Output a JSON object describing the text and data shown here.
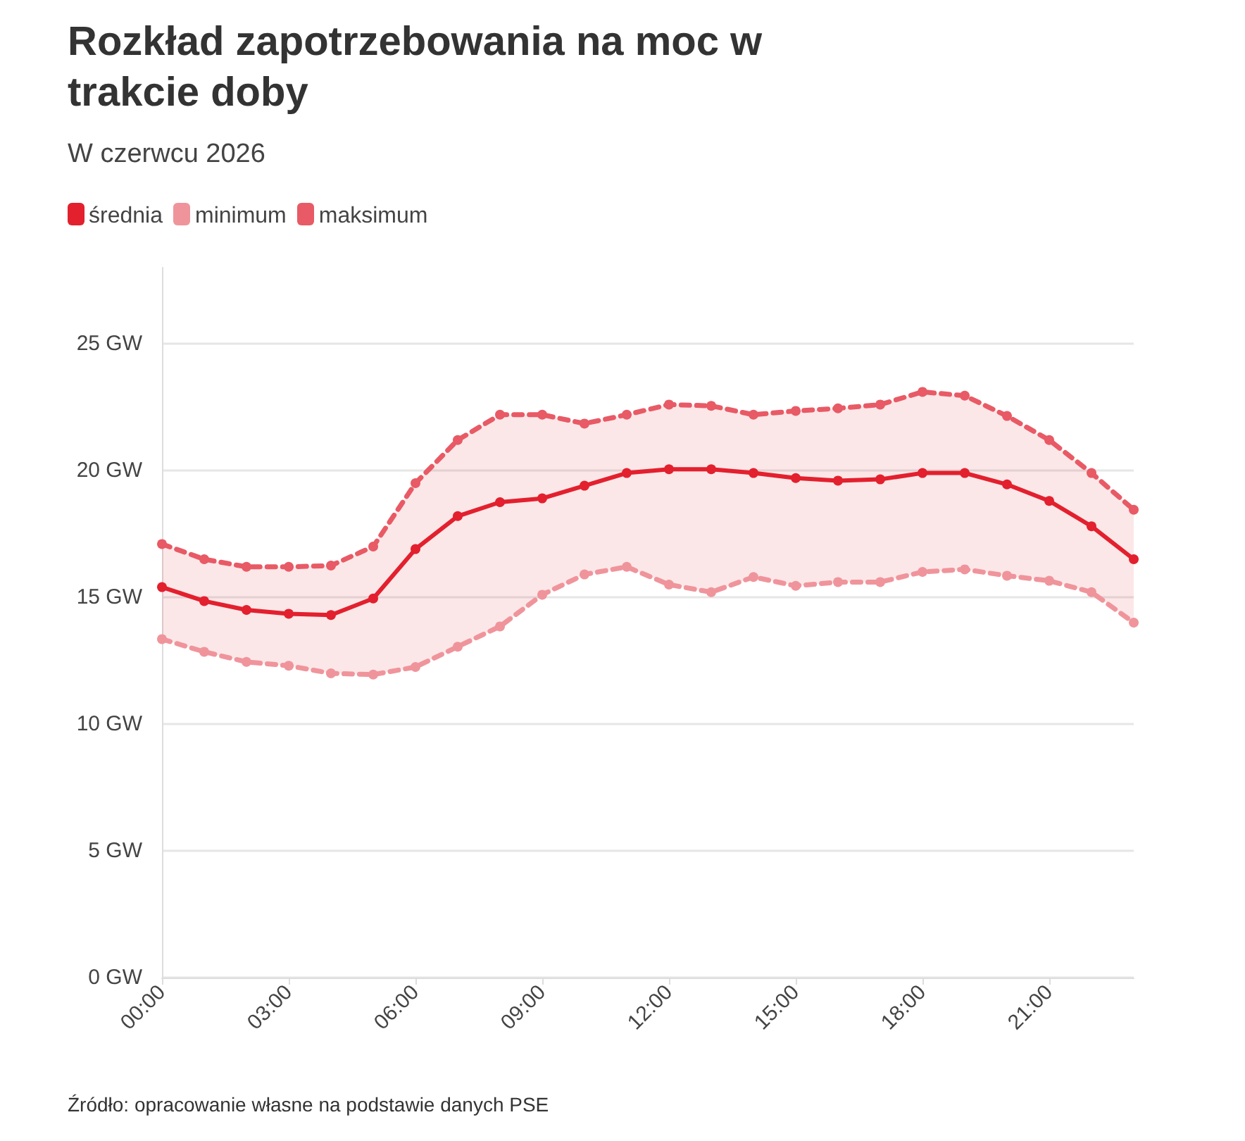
{
  "chart_data": {
    "type": "line",
    "title": "Rozkład zapotrzebowania na moc w trakcie doby",
    "subtitle": "W czerwcu 2026",
    "annotations": [
      "Źródło: opracowanie własne na podstawie danych PSE"
    ],
    "x": [
      0,
      1,
      2,
      3,
      4,
      5,
      6,
      7,
      8,
      9,
      10,
      11,
      12,
      13,
      14,
      15,
      16,
      17,
      18,
      19,
      20,
      21,
      22,
      23
    ],
    "series": [
      {
        "name": "średnia",
        "color": "#e3202e",
        "line_style": "solid",
        "values": [
          15.4,
          14.85,
          14.5,
          14.35,
          14.3,
          14.95,
          16.9,
          18.2,
          18.75,
          18.9,
          19.4,
          19.9,
          20.05,
          20.05,
          19.9,
          19.7,
          19.6,
          19.65,
          19.9,
          19.9,
          19.45,
          18.8,
          17.8,
          16.5
        ],
        "lower": [
          13.35,
          12.85,
          12.45,
          12.3,
          12.0,
          11.95,
          12.25,
          13.05,
          13.85,
          15.1,
          15.9,
          16.2,
          15.5,
          15.2,
          15.8,
          15.45,
          15.6,
          15.6,
          16.0,
          16.1,
          15.85,
          15.65,
          15.2,
          14.0
        ],
        "upper": [
          17.1,
          16.5,
          16.2,
          16.2,
          16.25,
          17.0,
          19.5,
          21.2,
          22.2,
          22.2,
          21.85,
          22.2,
          22.6,
          22.55,
          22.2,
          22.35,
          22.45,
          22.6,
          23.1,
          22.95,
          22.15,
          21.2,
          19.9,
          18.45
        ]
      },
      {
        "name": "minimum",
        "color": "#f0949b",
        "line_style": "dashed",
        "values": [
          13.35,
          12.85,
          12.45,
          12.3,
          12.0,
          11.95,
          12.25,
          13.05,
          13.85,
          15.1,
          15.9,
          16.2,
          15.5,
          15.2,
          15.8,
          15.45,
          15.6,
          15.6,
          16.0,
          16.1,
          15.85,
          15.65,
          15.2,
          14.0
        ]
      },
      {
        "name": "maksimum",
        "color": "#e85a65",
        "line_style": "dashed",
        "values": [
          17.1,
          16.5,
          16.2,
          16.2,
          16.25,
          17.0,
          19.5,
          21.2,
          22.2,
          22.2,
          21.85,
          22.2,
          22.6,
          22.55,
          22.2,
          22.35,
          22.45,
          22.6,
          23.1,
          22.95,
          22.15,
          21.2,
          19.9,
          18.45
        ]
      }
    ],
    "xlim": [
      0,
      23
    ],
    "xticks": [
      {
        "value": 0,
        "label": "00:00"
      },
      {
        "value": 3,
        "label": "03:00"
      },
      {
        "value": 6,
        "label": "06:00"
      },
      {
        "value": 9,
        "label": "09:00"
      },
      {
        "value": 12,
        "label": "12:00"
      },
      {
        "value": 15,
        "label": "15:00"
      },
      {
        "value": 18,
        "label": "18:00"
      },
      {
        "value": 21,
        "label": "21:00"
      }
    ],
    "ylim": [
      0,
      28
    ],
    "yticks": [
      {
        "value": 0,
        "label": "0 GW"
      },
      {
        "value": 5,
        "label": "5 GW"
      },
      {
        "value": 10,
        "label": "10 GW"
      },
      {
        "value": 15,
        "label": "15 GW"
      },
      {
        "value": 20,
        "label": "20 GW"
      },
      {
        "value": 25,
        "label": "25 GW"
      }
    ],
    "grid": "y",
    "legend": "top left",
    "marker": "circle"
  }
}
